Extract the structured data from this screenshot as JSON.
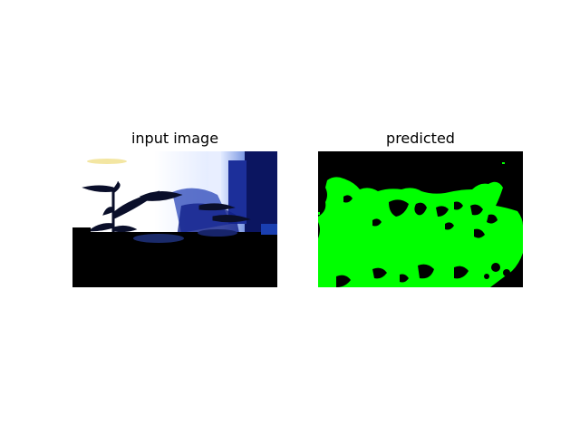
{
  "figure": {
    "panels": [
      {
        "title": "input image"
      },
      {
        "title": "predicted"
      }
    ],
    "colors": {
      "background": "#ffffff",
      "mask_foreground": "#00ff00",
      "mask_background": "#000000"
    }
  }
}
